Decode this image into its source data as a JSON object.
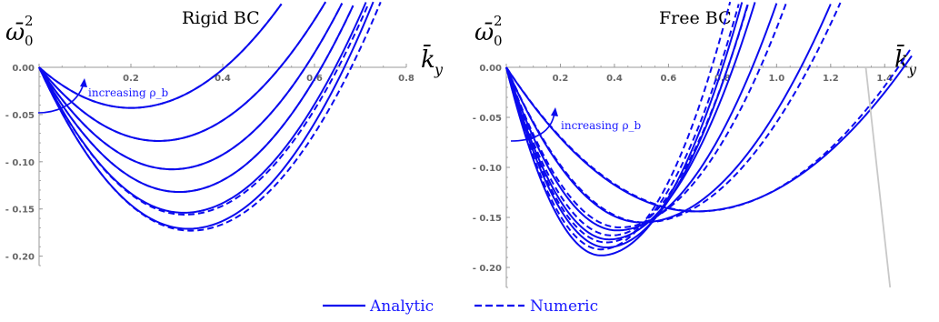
{
  "chart_data": [
    {
      "type": "line",
      "title": "Rigid BC",
      "xlabel": "k̄_y",
      "ylabel": "ω̄₀²",
      "xlim": [
        0,
        0.8
      ],
      "ylim": [
        -0.21,
        0.0
      ],
      "xticks": [
        "0.2",
        "0.4",
        "0.6",
        "0.8"
      ],
      "yticks": [
        "0.00",
        "- 0.05",
        "- 0.10",
        "- 0.15",
        "- 0.20"
      ],
      "annotation": "increasing ρ_b",
      "series": [
        {
          "style": "analytic",
          "min_k": 0.2,
          "min_value": -0.043,
          "root_k": 0.405
        },
        {
          "style": "numeric",
          "min_k": 0.2,
          "min_value": -0.043,
          "root_k": 0.405
        },
        {
          "style": "analytic",
          "min_k": 0.26,
          "min_value": -0.078,
          "root_k": 0.525
        },
        {
          "style": "numeric",
          "min_k": 0.26,
          "min_value": -0.078,
          "root_k": 0.525
        },
        {
          "style": "analytic",
          "min_k": 0.29,
          "min_value": -0.108,
          "root_k": 0.58
        },
        {
          "style": "numeric",
          "min_k": 0.29,
          "min_value": -0.108,
          "root_k": 0.58
        },
        {
          "style": "analytic",
          "min_k": 0.305,
          "min_value": -0.132,
          "root_k": 0.615
        },
        {
          "style": "numeric",
          "min_k": 0.305,
          "min_value": -0.132,
          "root_k": 0.615
        },
        {
          "style": "analytic",
          "min_k": 0.315,
          "min_value": -0.154,
          "root_k": 0.645
        },
        {
          "style": "numeric",
          "min_k": 0.318,
          "min_value": -0.156,
          "root_k": 0.652
        },
        {
          "style": "analytic",
          "min_k": 0.325,
          "min_value": -0.171,
          "root_k": 0.665
        },
        {
          "style": "numeric",
          "min_k": 0.33,
          "min_value": -0.173,
          "root_k": 0.68
        }
      ]
    },
    {
      "type": "line",
      "title": "Free BC",
      "xlabel": "k̄_y",
      "ylabel": "ω̄₀²",
      "xlim": [
        0,
        1.5
      ],
      "ylim": [
        -0.22,
        0.0
      ],
      "xticks": [
        "0.2",
        "0.4",
        "0.6",
        "0.8",
        "1.0",
        "1.2",
        "1.4"
      ],
      "yticks": [
        "0.00",
        "- 0.05",
        "- 0.10",
        "- 0.15",
        "- 0.20"
      ],
      "annotation": "increasing ρ_b",
      "series": [
        {
          "style": "analytic",
          "min_k": 0.35,
          "min_value": -0.188,
          "root_k": 0.8
        },
        {
          "style": "numeric",
          "min_k": 0.35,
          "min_value": -0.182,
          "root_k": 0.76
        },
        {
          "style": "analytic",
          "min_k": 0.37,
          "min_value": -0.18,
          "root_k": 0.82
        },
        {
          "style": "numeric",
          "min_k": 0.37,
          "min_value": -0.175,
          "root_k": 0.79
        },
        {
          "style": "analytic",
          "min_k": 0.38,
          "min_value": -0.172,
          "root_k": 0.84
        },
        {
          "style": "numeric",
          "min_k": 0.39,
          "min_value": -0.168,
          "root_k": 0.82
        },
        {
          "style": "analytic",
          "min_k": 0.41,
          "min_value": -0.163,
          "root_k": 0.91
        },
        {
          "style": "numeric",
          "min_k": 0.42,
          "min_value": -0.16,
          "root_k": 0.94
        },
        {
          "style": "analytic",
          "min_k": 0.5,
          "min_value": -0.155,
          "root_k": 1.09
        },
        {
          "style": "numeric",
          "min_k": 0.51,
          "min_value": -0.155,
          "root_k": 1.12
        },
        {
          "style": "analytic",
          "min_k": 0.7,
          "min_value": -0.144,
          "root_k": 1.47
        },
        {
          "style": "numeric",
          "min_k": 0.71,
          "min_value": -0.144,
          "root_k": 1.45
        },
        {
          "style": "boundary",
          "points": [
            [
              1.33,
              0.0
            ],
            [
              1.42,
              -0.22
            ]
          ]
        }
      ]
    }
  ],
  "legend": {
    "analytic": "Analytic",
    "numeric": "Numeric"
  },
  "colors": {
    "curve": "#0a0aee",
    "boundary": "#c8c8c8",
    "axis": "#999999"
  }
}
